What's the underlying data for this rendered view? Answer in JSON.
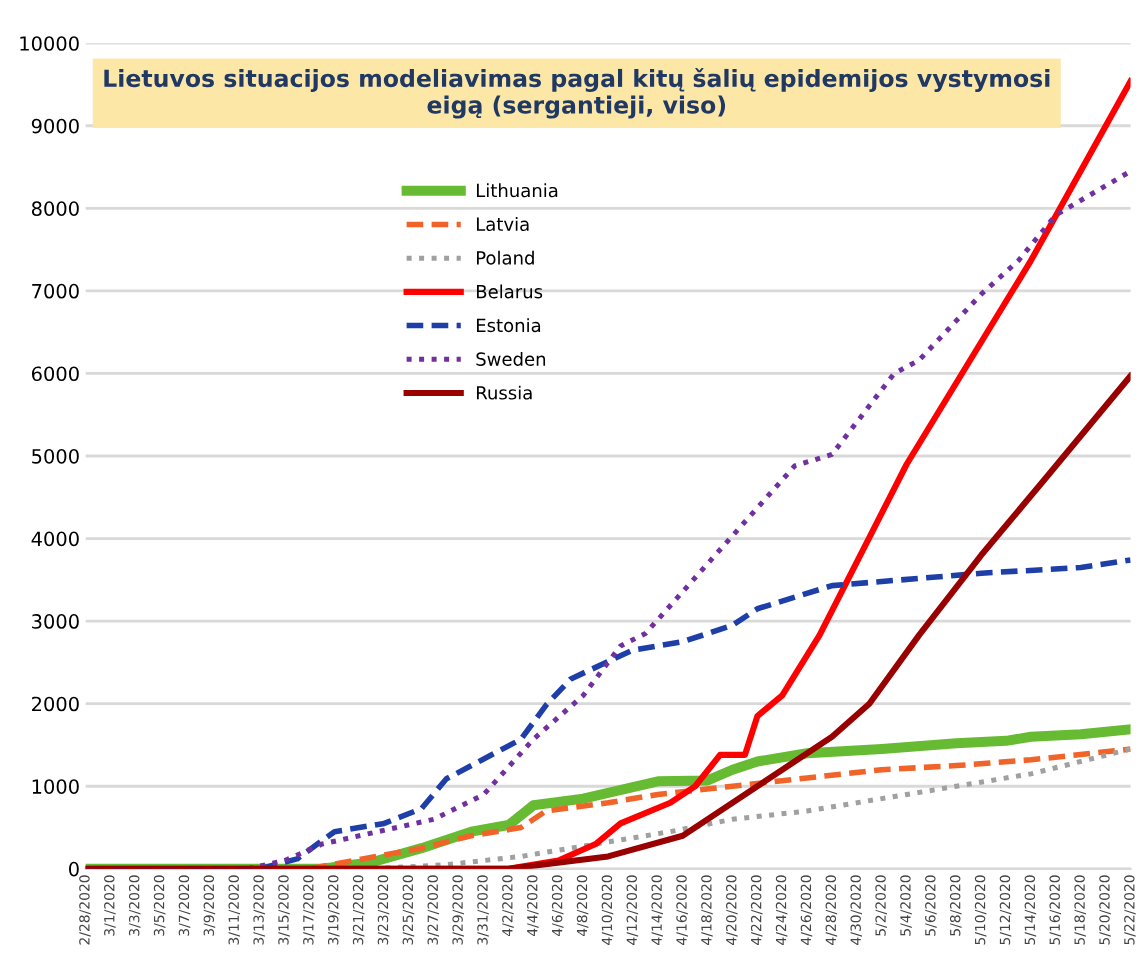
{
  "chart_data": {
    "type": "line",
    "title": "Lietuvos situacijos modeliavimas pagal kitų šalių epidemijos vystymosi eigą (sergantieji, viso)",
    "xlim": [
      "2020-02-28",
      "2020-05-22"
    ],
    "ylim": [
      0,
      10000
    ],
    "yticks": [
      0,
      1000,
      2000,
      3000,
      4000,
      5000,
      6000,
      7000,
      8000,
      9000,
      10000
    ],
    "xticks": [
      {
        "value": "2020-02-28",
        "label": "2/28/2020"
      },
      {
        "value": "2020-03-01",
        "label": "3/1/2020"
      },
      {
        "value": "2020-03-03",
        "label": "3/3/2020"
      },
      {
        "value": "2020-03-05",
        "label": "3/5/2020"
      },
      {
        "value": "2020-03-07",
        "label": "3/7/2020"
      },
      {
        "value": "2020-03-09",
        "label": "3/9/2020"
      },
      {
        "value": "2020-03-11",
        "label": "3/11/2020"
      },
      {
        "value": "2020-03-13",
        "label": "3/13/2020"
      },
      {
        "value": "2020-03-15",
        "label": "3/15/2020"
      },
      {
        "value": "2020-03-17",
        "label": "3/17/2020"
      },
      {
        "value": "2020-03-19",
        "label": "3/19/2020"
      },
      {
        "value": "2020-03-21",
        "label": "3/21/2020"
      },
      {
        "value": "2020-03-23",
        "label": "3/23/2020"
      },
      {
        "value": "2020-03-25",
        "label": "3/25/2020"
      },
      {
        "value": "2020-03-27",
        "label": "3/27/2020"
      },
      {
        "value": "2020-03-29",
        "label": "3/29/2020"
      },
      {
        "value": "2020-03-31",
        "label": "3/31/2020"
      },
      {
        "value": "2020-04-02",
        "label": "4/2/2020"
      },
      {
        "value": "2020-04-04",
        "label": "4/4/2020"
      },
      {
        "value": "2020-04-06",
        "label": "4/6/2020"
      },
      {
        "value": "2020-04-08",
        "label": "4/8/2020"
      },
      {
        "value": "2020-04-10",
        "label": "4/10/2020"
      },
      {
        "value": "2020-04-12",
        "label": "4/12/2020"
      },
      {
        "value": "2020-04-14",
        "label": "4/14/2020"
      },
      {
        "value": "2020-04-16",
        "label": "4/16/2020"
      },
      {
        "value": "2020-04-18",
        "label": "4/18/2020"
      },
      {
        "value": "2020-04-20",
        "label": "4/20/2020"
      },
      {
        "value": "2020-04-22",
        "label": "4/22/2020"
      },
      {
        "value": "2020-04-24",
        "label": "4/24/2020"
      },
      {
        "value": "2020-04-26",
        "label": "4/26/2020"
      },
      {
        "value": "2020-04-28",
        "label": "4/28/2020"
      },
      {
        "value": "2020-04-30",
        "label": "4/30/2020"
      },
      {
        "value": "2020-05-02",
        "label": "5/2/2020"
      },
      {
        "value": "2020-05-04",
        "label": "5/4/2020"
      },
      {
        "value": "2020-05-06",
        "label": "5/6/2020"
      },
      {
        "value": "2020-05-08",
        "label": "5/8/2020"
      },
      {
        "value": "2020-05-10",
        "label": "5/10/2020"
      },
      {
        "value": "2020-05-12",
        "label": "5/12/2020"
      },
      {
        "value": "2020-05-14",
        "label": "5/14/2020"
      },
      {
        "value": "2020-05-16",
        "label": "5/16/2020"
      },
      {
        "value": "2020-05-18",
        "label": "5/18/2020"
      },
      {
        "value": "2020-05-20",
        "label": "5/20/2020"
      },
      {
        "value": "2020-05-22",
        "label": "5/22/2020"
      }
    ],
    "grid": "y",
    "legend": "top",
    "marker": "none",
    "series": [
      {
        "name": "Lithuania",
        "color": "#66bb33",
        "line_style": "solid",
        "x": [
          "2020-02-28",
          "2020-03-18",
          "2020-03-22",
          "2020-03-26",
          "2020-03-30",
          "2020-04-02",
          "2020-04-04",
          "2020-04-08",
          "2020-04-12",
          "2020-04-14",
          "2020-04-18",
          "2020-04-20",
          "2020-04-22",
          "2020-04-26",
          "2020-05-02",
          "2020-05-08",
          "2020-05-12",
          "2020-05-14",
          "2020-05-18",
          "2020-05-22"
        ],
        "values": [
          0,
          0,
          80,
          250,
          450,
          530,
          770,
          850,
          990,
          1060,
          1070,
          1200,
          1300,
          1400,
          1450,
          1520,
          1550,
          1600,
          1630,
          1690
        ]
      },
      {
        "name": "Latvia",
        "color": "#f0642a",
        "line_style": "dashed",
        "x": [
          "2020-02-28",
          "2020-03-17",
          "2020-03-26",
          "2020-03-30",
          "2020-04-03",
          "2020-04-05",
          "2020-04-10",
          "2020-04-14",
          "2020-04-20",
          "2020-04-26",
          "2020-05-02",
          "2020-05-08",
          "2020-05-14",
          "2020-05-22"
        ],
        "values": [
          0,
          0,
          250,
          400,
          500,
          700,
          800,
          900,
          1000,
          1100,
          1200,
          1250,
          1320,
          1450
        ]
      },
      {
        "name": "Poland",
        "color": "#a0a0a0",
        "line_style": "dotted",
        "x": [
          "2020-02-28",
          "2020-03-22",
          "2020-03-28",
          "2020-04-03",
          "2020-04-09",
          "2020-04-15",
          "2020-04-20",
          "2020-04-26",
          "2020-05-02",
          "2020-05-08",
          "2020-05-14",
          "2020-05-22"
        ],
        "values": [
          0,
          0,
          50,
          150,
          300,
          450,
          600,
          700,
          850,
          1000,
          1150,
          1450
        ]
      },
      {
        "name": "Belarus",
        "color": "#ff0000",
        "line_style": "solid",
        "x": [
          "2020-02-28",
          "2020-04-02",
          "2020-04-06",
          "2020-04-09",
          "2020-04-11",
          "2020-04-15",
          "2020-04-17",
          "2020-04-19",
          "2020-04-21",
          "2020-04-22",
          "2020-04-24",
          "2020-04-27",
          "2020-05-04",
          "2020-05-14",
          "2020-05-22"
        ],
        "values": [
          0,
          0,
          100,
          300,
          550,
          800,
          1000,
          1380,
          1380,
          1850,
          2100,
          2830,
          4900,
          7370,
          9540
        ]
      },
      {
        "name": "Estonia",
        "color": "#1f3fa8",
        "line_style": "dashed",
        "x": [
          "2020-02-28",
          "2020-03-13",
          "2020-03-16",
          "2020-03-19",
          "2020-03-23",
          "2020-03-26",
          "2020-03-28",
          "2020-04-03",
          "2020-04-05",
          "2020-04-07",
          "2020-04-12",
          "2020-04-16",
          "2020-04-20",
          "2020-04-22",
          "2020-04-28",
          "2020-05-10",
          "2020-05-18",
          "2020-05-22"
        ],
        "values": [
          0,
          0,
          120,
          450,
          550,
          730,
          1090,
          1570,
          1980,
          2300,
          2650,
          2750,
          2950,
          3150,
          3430,
          3580,
          3650,
          3740
        ]
      },
      {
        "name": "Sweden",
        "color": "#7030a0",
        "line_style": "dotted",
        "x": [
          "2020-02-28",
          "2020-03-12",
          "2020-03-15",
          "2020-03-18",
          "2020-03-27",
          "2020-03-31",
          "2020-04-04",
          "2020-04-08",
          "2020-04-11",
          "2020-04-13",
          "2020-04-25",
          "2020-04-28",
          "2020-05-03",
          "2020-05-05",
          "2020-05-10",
          "2020-05-13",
          "2020-05-16",
          "2020-05-22"
        ],
        "values": [
          0,
          0,
          100,
          300,
          600,
          900,
          1570,
          2100,
          2700,
          2850,
          4880,
          5020,
          6000,
          6160,
          6960,
          7370,
          7920,
          8450
        ]
      },
      {
        "name": "Russia",
        "color": "#990000",
        "line_style": "solid",
        "x": [
          "2020-02-28",
          "2020-04-02",
          "2020-04-10",
          "2020-04-16",
          "2020-04-20",
          "2020-04-24",
          "2020-04-28",
          "2020-05-01",
          "2020-05-05",
          "2020-05-10",
          "2020-05-15",
          "2020-05-22"
        ],
        "values": [
          0,
          0,
          150,
          400,
          800,
          1200,
          1600,
          2000,
          2830,
          3800,
          4700,
          5970
        ]
      }
    ]
  }
}
